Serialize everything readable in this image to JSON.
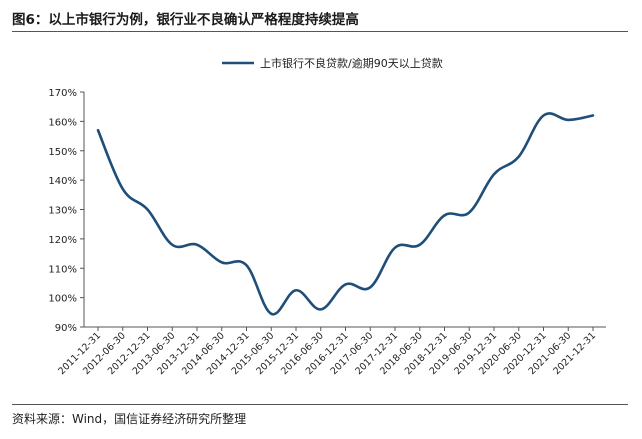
{
  "figure": {
    "title": "图6：以上市银行为例，银行业不良确认严格程度持续提高",
    "source": "资料来源：Wind，国信证券经济研究所整理"
  },
  "chart_data": {
    "type": "line",
    "title": "",
    "xlabel": "",
    "ylabel": "",
    "ylim": [
      90,
      170
    ],
    "yticks": [
      "90%",
      "100%",
      "110%",
      "120%",
      "130%",
      "140%",
      "150%",
      "160%",
      "170%"
    ],
    "legend_position": "top-center",
    "grid": false,
    "color": "#1f4e79",
    "categories": [
      "2011-12-31",
      "2012-06-30",
      "2012-12-31",
      "2013-06-30",
      "2013-12-31",
      "2014-06-30",
      "2014-12-31",
      "2015-06-30",
      "2015-12-31",
      "2016-06-30",
      "2016-12-31",
      "2017-06-30",
      "2017-12-31",
      "2018-06-30",
      "2018-12-31",
      "2019-06-30",
      "2019-12-31",
      "2020-06-30",
      "2020-12-31",
      "2021-06-30",
      "2021-12-31"
    ],
    "series": [
      {
        "name": "上市银行不良贷款/逾期90天以上贷款",
        "values": [
          157,
          137,
          130,
          118,
          118,
          112,
          111,
          94.5,
          102.5,
          96,
          104.5,
          103.5,
          117,
          118,
          128,
          129,
          142,
          148,
          162,
          160.5,
          162
        ]
      }
    ]
  }
}
